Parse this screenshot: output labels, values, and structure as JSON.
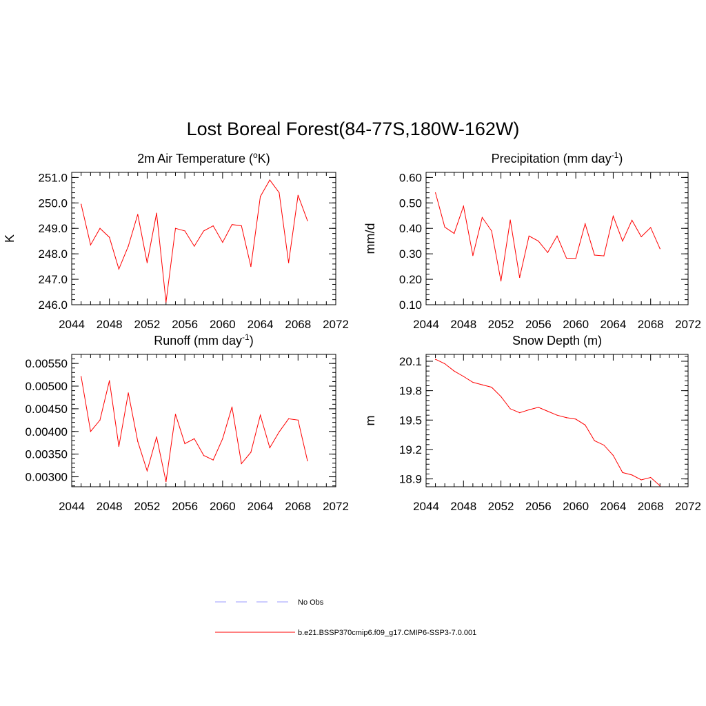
{
  "figure": {
    "title": "Lost Boreal Forest(84-77S,180W-162W)",
    "legend": [
      {
        "label": "No Obs",
        "color": "#9999ff",
        "dash": true
      },
      {
        "label": "b.e21.BSSP370cmip6.f09_g17.CMIP6-SSP3-7.0.001",
        "color": "#ff0000",
        "dash": false
      }
    ]
  },
  "chart_data": [
    {
      "type": "line",
      "title_main": "2m Air Temperature (",
      "title_sup": "o",
      "title_tail": "K)",
      "title_sup_pos": "pre",
      "ylabel": "K",
      "xlabel": "",
      "xlim": [
        2044,
        2072
      ],
      "ylim": [
        246.0,
        251.2
      ],
      "xticks": [
        2044,
        2048,
        2052,
        2056,
        2060,
        2064,
        2068,
        2072
      ],
      "yticks": [
        "246.0",
        "247.0",
        "248.0",
        "249.0",
        "250.0",
        "251.0"
      ],
      "ytick_values": [
        246.0,
        247.0,
        248.0,
        249.0,
        250.0,
        251.0
      ],
      "yminor": 0.2,
      "color": "#ff0000",
      "x": [
        2045,
        2046,
        2047,
        2048,
        2049,
        2050,
        2051,
        2052,
        2053,
        2054,
        2055,
        2056,
        2057,
        2058,
        2059,
        2060,
        2061,
        2062,
        2063,
        2064,
        2065,
        2066,
        2067,
        2068,
        2069
      ],
      "y": [
        249.95,
        248.35,
        249.0,
        248.65,
        247.4,
        248.3,
        249.55,
        247.65,
        249.6,
        246.1,
        249.0,
        248.9,
        248.3,
        248.9,
        249.1,
        248.45,
        249.15,
        249.1,
        247.5,
        250.25,
        250.9,
        250.4,
        247.65,
        250.3,
        249.3
      ]
    },
    {
      "type": "line",
      "title_main": "Precipitation (mm day",
      "title_sup": "-1",
      "title_tail": ")",
      "title_sup_pos": "post",
      "ylabel": "mm/d",
      "xlabel": "",
      "xlim": [
        2044,
        2072
      ],
      "ylim": [
        0.1,
        0.62
      ],
      "xticks": [
        2044,
        2048,
        2052,
        2056,
        2060,
        2064,
        2068,
        2072
      ],
      "yticks": [
        "0.10",
        "0.20",
        "0.30",
        "0.40",
        "0.50",
        "0.60"
      ],
      "ytick_values": [
        0.1,
        0.2,
        0.3,
        0.4,
        0.5,
        0.6
      ],
      "yminor": 0.02,
      "color": "#ff0000",
      "x": [
        2045,
        2046,
        2047,
        2048,
        2049,
        2050,
        2051,
        2052,
        2053,
        2054,
        2055,
        2056,
        2057,
        2058,
        2059,
        2060,
        2061,
        2062,
        2063,
        2064,
        2065,
        2066,
        2067,
        2068,
        2069
      ],
      "y": [
        0.54,
        0.405,
        0.38,
        0.487,
        0.293,
        0.443,
        0.39,
        0.193,
        0.433,
        0.207,
        0.37,
        0.35,
        0.305,
        0.37,
        0.283,
        0.282,
        0.418,
        0.295,
        0.292,
        0.448,
        0.35,
        0.432,
        0.367,
        0.403,
        0.32
      ]
    },
    {
      "type": "line",
      "title_main": "Runoff (mm day",
      "title_sup": "-1",
      "title_tail": ")",
      "title_sup_pos": "post",
      "ylabel": "",
      "xlabel": "",
      "xlim": [
        2044,
        2072
      ],
      "ylim": [
        0.00278,
        0.0057
      ],
      "xticks": [
        2044,
        2048,
        2052,
        2056,
        2060,
        2064,
        2068,
        2072
      ],
      "yticks": [
        "0.00300",
        "0.00350",
        "0.00400",
        "0.00450",
        "0.00500",
        "0.00550"
      ],
      "ytick_values": [
        0.003,
        0.0035,
        0.004,
        0.0045,
        0.005,
        0.0055
      ],
      "yminor": 0.0001,
      "color": "#ff0000",
      "x": [
        2045,
        2046,
        2047,
        2048,
        2049,
        2050,
        2051,
        2052,
        2053,
        2054,
        2055,
        2056,
        2057,
        2058,
        2059,
        2060,
        2061,
        2062,
        2063,
        2064,
        2065,
        2066,
        2067,
        2068,
        2069
      ],
      "y": [
        0.00521,
        0.004,
        0.00425,
        0.00512,
        0.00367,
        0.00485,
        0.00378,
        0.00313,
        0.00388,
        0.00289,
        0.00438,
        0.00373,
        0.00384,
        0.00347,
        0.00337,
        0.00384,
        0.00454,
        0.00329,
        0.00354,
        0.00436,
        0.00364,
        0.00399,
        0.00428,
        0.00425,
        0.00335
      ]
    },
    {
      "type": "line",
      "title_main": "Snow Depth (m)",
      "title_sup": "",
      "title_tail": "",
      "title_sup_pos": "none",
      "ylabel": "m",
      "xlabel": "",
      "xlim": [
        2044,
        2072
      ],
      "ylim": [
        18.82,
        20.17
      ],
      "xticks": [
        2044,
        2048,
        2052,
        2056,
        2060,
        2064,
        2068,
        2072
      ],
      "yticks": [
        "18.9",
        "19.2",
        "19.5",
        "19.8",
        "20.1"
      ],
      "ytick_values": [
        18.9,
        19.2,
        19.5,
        19.8,
        20.1
      ],
      "yminor": 0.05,
      "color": "#ff0000",
      "x": [
        2045,
        2046,
        2047,
        2048,
        2049,
        2050,
        2051,
        2052,
        2053,
        2054,
        2055,
        2056,
        2057,
        2058,
        2059,
        2060,
        2061,
        2062,
        2063,
        2064,
        2065,
        2066,
        2067,
        2068,
        2069
      ],
      "y": [
        20.12,
        20.075,
        20.0,
        19.945,
        19.885,
        19.86,
        19.835,
        19.74,
        19.615,
        19.575,
        19.605,
        19.63,
        19.59,
        19.55,
        19.525,
        19.51,
        19.45,
        19.29,
        19.245,
        19.14,
        18.965,
        18.94,
        18.89,
        18.915,
        18.83
      ]
    }
  ]
}
